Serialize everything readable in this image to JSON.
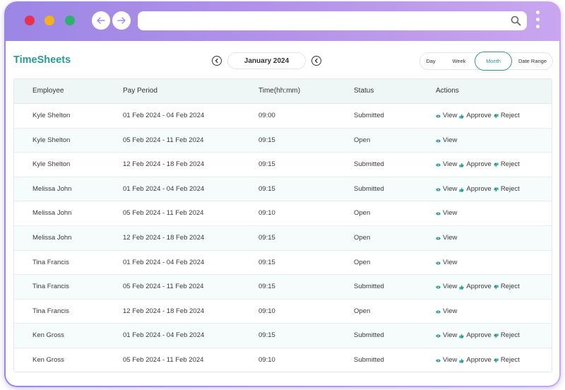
{
  "app": {
    "title": "TimeSheets"
  },
  "period": {
    "label": "January 2024"
  },
  "view_modes": {
    "day": "Day",
    "week": "Week",
    "month": "Month",
    "range": "Date Range",
    "active": "Month"
  },
  "colors": {
    "accent": "#2a9a92",
    "frame_from": "#9b86e6",
    "frame_to": "#c9a6ef"
  },
  "table": {
    "headers": {
      "employee": "Employee",
      "pay_period": "Pay Period",
      "time": "Time(hh:mm)",
      "status": "Status",
      "actions": "Actions"
    },
    "action_labels": {
      "view": "View",
      "approve": "Approve",
      "reject": "Reject"
    },
    "rows": [
      {
        "employee": "Kyle Shelton",
        "pay_period": "01 Feb 2024 - 04 Feb 2024",
        "time": "09:00",
        "status": "Submitted"
      },
      {
        "employee": "Kyle Shelton",
        "pay_period": "05 Feb 2024 - 11 Feb 2024",
        "time": "09:15",
        "status": "Open"
      },
      {
        "employee": "Kyle Shelton",
        "pay_period": "12 Feb 2024 - 18 Feb 2024",
        "time": "09:15",
        "status": "Submitted"
      },
      {
        "employee": "Melissa John",
        "pay_period": "01 Feb 2024 - 04 Feb 2024",
        "time": "09:15",
        "status": "Submitted"
      },
      {
        "employee": "Melissa John",
        "pay_period": "05 Feb 2024 - 11 Feb 2024",
        "time": "09:10",
        "status": "Open"
      },
      {
        "employee": "Melissa John",
        "pay_period": "12 Feb 2024 - 18 Feb 2024",
        "time": "09:15",
        "status": "Open"
      },
      {
        "employee": "Tina Francis",
        "pay_period": "01 Feb 2024 - 04 Feb 2024",
        "time": "09:15",
        "status": "Open"
      },
      {
        "employee": "Tina Francis",
        "pay_period": "05 Feb 2024 - 11 Feb 2024",
        "time": "09:15",
        "status": "Submitted"
      },
      {
        "employee": "Tina Francis",
        "pay_period": "12 Feb 2024 - 18 Feb 2024",
        "time": "09:10",
        "status": "Open"
      },
      {
        "employee": "Ken Gross",
        "pay_period": "01 Feb 2024 - 04 Feb 2024",
        "time": "09:15",
        "status": "Submitted"
      },
      {
        "employee": "Ken Gross",
        "pay_period": "05 Feb 2024 - 11 Feb 2024",
        "time": "09:10",
        "status": "Submitted"
      }
    ]
  },
  "icons": {
    "back": "arrow-left-icon",
    "forward": "arrow-right-icon",
    "search": "search-icon",
    "menu": "kebab-menu-icon",
    "view": "eye-icon",
    "approve": "thumbs-up-icon",
    "reject": "thumbs-down-icon"
  }
}
